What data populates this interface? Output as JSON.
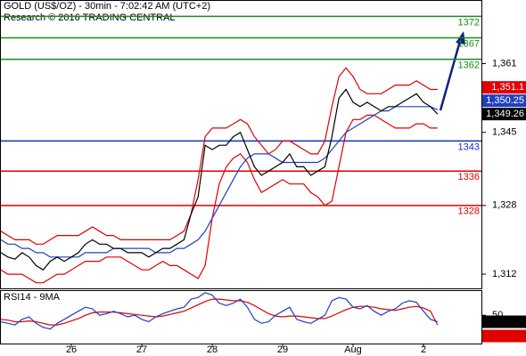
{
  "chart_data": [
    {
      "type": "line",
      "title": "GOLD (US$/OZ) - 30min - 7:02:42 AM (UTC+2)",
      "subtitle": "Research © 2016 TRADING CENTRAL",
      "categories": [
        null,
        null,
        null,
        null,
        null,
        null,
        null,
        null,
        null,
        null,
        "26",
        null,
        null,
        null,
        null,
        null,
        null,
        null,
        null,
        null,
        "27",
        null,
        null,
        null,
        null,
        null,
        null,
        null,
        null,
        null,
        "28",
        null,
        null,
        null,
        null,
        null,
        null,
        null,
        null,
        null,
        "29",
        null,
        null,
        null,
        null,
        null,
        null,
        null,
        null,
        null,
        "Aug",
        null,
        null,
        null,
        null,
        null,
        null,
        null,
        null,
        null,
        "2",
        null,
        null
      ],
      "ylim": [
        1308.7,
        1375.6
      ],
      "yticks": [
        {
          "value": 1312,
          "label": "1,312"
        },
        {
          "value": 1328,
          "label": "1,328"
        },
        {
          "value": 1345,
          "label": "1,345"
        },
        {
          "value": 1361,
          "label": "1,361"
        }
      ],
      "series": [
        {
          "color": "#e00000",
          "values": [
            1322,
            1321,
            1320,
            1320,
            1320,
            1319,
            1319,
            1320,
            1321,
            1321,
            1321,
            1321,
            1322,
            1323,
            1322,
            1321,
            1321,
            1320,
            1320,
            1320,
            1320,
            1320,
            1320,
            1320,
            1320,
            1321,
            1322,
            1326,
            1334,
            1344,
            1346,
            1346,
            1346,
            1347,
            1348,
            1347,
            1344,
            1342,
            1340,
            1341,
            1343,
            1343,
            1342,
            1341,
            1340,
            1340,
            1343,
            1351,
            1358,
            1360,
            1358,
            1355,
            1354,
            1354,
            1354,
            1355,
            1356,
            1356,
            1356,
            1357,
            1356,
            1355,
            1355
          ]
        },
        {
          "color": "#e00000",
          "values": [
            1313,
            1312,
            1312,
            1312,
            1311,
            1310,
            1310,
            1311,
            1312,
            1312,
            1313,
            1314,
            1315,
            1315,
            1315,
            1316,
            1316,
            1316,
            1315,
            1314,
            1313,
            1313,
            1314,
            1315,
            1314,
            1314,
            1313,
            1312,
            1311,
            1314,
            1325,
            1333,
            1337,
            1339,
            1340,
            1338,
            1334,
            1331,
            1332,
            1333,
            1334,
            1333,
            1333,
            1333,
            1331,
            1330,
            1328,
            1329,
            1337,
            1345,
            1348,
            1348,
            1349,
            1349,
            1348,
            1347,
            1346,
            1346,
            1346,
            1347,
            1347,
            1346,
            1346
          ]
        },
        {
          "color": "#2040c0",
          "values": [
            1320,
            1319,
            1319,
            1318,
            1318,
            1317,
            1317,
            1316,
            1316,
            1316,
            1316,
            1316,
            1317,
            1317,
            1317,
            1317,
            1318,
            1318,
            1318,
            1318,
            1318,
            1318,
            1317,
            1317,
            1317,
            1318,
            1318,
            1319,
            1320,
            1322,
            1325,
            1328,
            1331,
            1334,
            1337,
            1339,
            1340,
            1340,
            1340,
            1339,
            1338,
            1338,
            1338,
            1338,
            1338,
            1338,
            1339,
            1341,
            1343,
            1345,
            1346,
            1347,
            1348,
            1349,
            1350,
            1350,
            1351,
            1351,
            1351,
            1351,
            1351,
            1351,
            1350.25
          ]
        },
        {
          "color": "#000000",
          "values": [
            1317,
            1316,
            1315.5,
            1317,
            1316,
            1314,
            1313,
            1315,
            1316,
            1315,
            1316,
            1317,
            1319,
            1320,
            1319,
            1319,
            1318,
            1318,
            1317,
            1317,
            1317,
            1316,
            1317,
            1318,
            1318,
            1319,
            1320,
            1326,
            1330,
            1342,
            1341,
            1342,
            1342,
            1344,
            1345,
            1341,
            1337,
            1335,
            1336,
            1337,
            1338,
            1340,
            1337,
            1337,
            1335,
            1336,
            1337,
            1344,
            1353,
            1355,
            1352,
            1351,
            1352,
            1351,
            1350,
            1351,
            1351,
            1352,
            1353,
            1354,
            1352,
            1351,
            1349.26
          ]
        }
      ],
      "levels": [
        {
          "value": 1372,
          "color": "#1a8a1a"
        },
        {
          "value": 1367,
          "color": "#1a8a1a"
        },
        {
          "value": 1362,
          "color": "#1a8a1a"
        },
        {
          "value": 1343,
          "color": "#1030c0"
        },
        {
          "value": 1336,
          "color": "#e00000"
        },
        {
          "value": 1328,
          "color": "#e00000"
        }
      ],
      "tags": [
        {
          "value": 1349.26,
          "label": "1,349.26",
          "color": "#000000"
        },
        {
          "value": 1350.25,
          "label": "1,350.25",
          "color": "#2040c0"
        },
        {
          "value": 1351.1,
          "label": "1,351.1",
          "color": "#e00000"
        }
      ]
    },
    {
      "type": "line",
      "title": "RSI14 - 9MA",
      "ylim": [
        15,
        80
      ],
      "yticks": [
        50
      ],
      "series": [
        {
          "color": "#e00000",
          "values": [
            45,
            44,
            42,
            42,
            43,
            42,
            40,
            38,
            38,
            40,
            43,
            46,
            50,
            53,
            54,
            54,
            54,
            53,
            52,
            51,
            50,
            49,
            48,
            49,
            51,
            53,
            55,
            59,
            63,
            67,
            70,
            70,
            69,
            68,
            68,
            66,
            62,
            57,
            52,
            49,
            48,
            49,
            49,
            48,
            47,
            46,
            46,
            49,
            53,
            57,
            60,
            61,
            61,
            60,
            58,
            57,
            56,
            58,
            60,
            61,
            59,
            55,
            38.019
          ]
        },
        {
          "color": "#2040c0",
          "values": [
            42,
            40,
            38,
            45,
            48,
            40,
            35,
            33,
            40,
            45,
            50,
            55,
            60,
            58,
            50,
            52,
            55,
            52,
            48,
            50,
            45,
            42,
            48,
            52,
            55,
            58,
            60,
            70,
            72,
            78,
            75,
            65,
            62,
            65,
            70,
            60,
            45,
            40,
            42,
            50,
            55,
            60,
            45,
            42,
            40,
            45,
            50,
            68,
            72,
            70,
            60,
            58,
            62,
            55,
            50,
            55,
            58,
            65,
            68,
            66,
            55,
            45,
            41.9647
          ]
        }
      ],
      "tags": [
        {
          "value": 41.9647,
          "color": "#000000"
        },
        {
          "value": 38.019,
          "color": "#e00000"
        }
      ]
    }
  ]
}
